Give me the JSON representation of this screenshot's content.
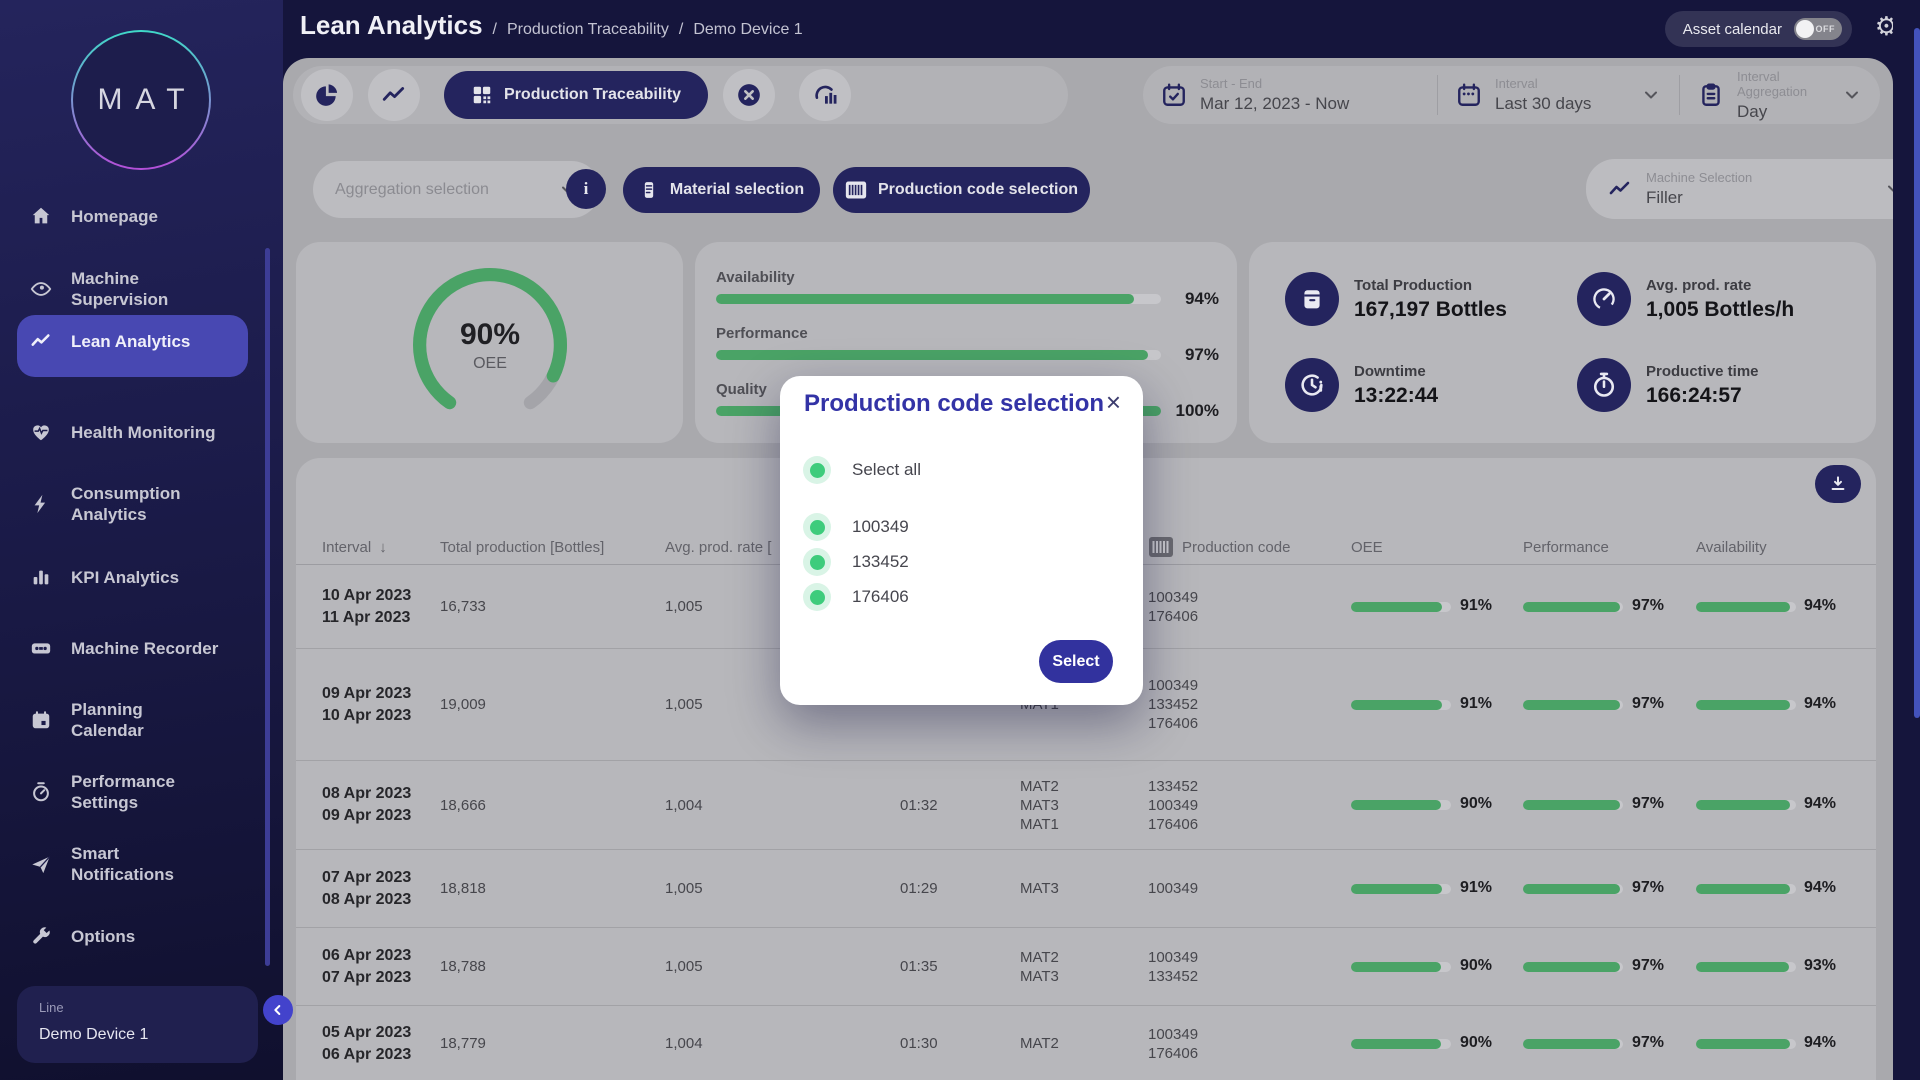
{
  "brand": {
    "logo_text": "MAT"
  },
  "header": {
    "title": "Lean Analytics",
    "breadcrumb": [
      "Production Traceability",
      "Demo Device 1"
    ],
    "asset_calendar_label": "Asset calendar",
    "asset_calendar_state": "OFF"
  },
  "sidebar": {
    "items": [
      {
        "icon": "home",
        "lines": [
          "Homepage"
        ],
        "active": false
      },
      {
        "icon": "eye",
        "lines": [
          "Machine",
          "Supervision"
        ],
        "active": false
      },
      {
        "icon": "trend",
        "lines": [
          "Lean Analytics"
        ],
        "active": true
      },
      {
        "icon": "heart",
        "lines": [
          "Health Monitoring"
        ],
        "active": false
      },
      {
        "icon": "bolt",
        "lines": [
          "Consumption",
          "Analytics"
        ],
        "active": false
      },
      {
        "icon": "bars",
        "lines": [
          "KPI Analytics"
        ],
        "active": false
      },
      {
        "icon": "recorder",
        "lines": [
          "Machine Recorder"
        ],
        "active": false
      },
      {
        "icon": "calendar",
        "lines": [
          "Planning",
          "Calendar"
        ],
        "active": false
      },
      {
        "icon": "gauge",
        "lines": [
          "Performance",
          "Settings"
        ],
        "active": false
      },
      {
        "icon": "send",
        "lines": [
          "Smart",
          "Notifications"
        ],
        "active": false
      },
      {
        "icon": "wrench",
        "lines": [
          "Options"
        ],
        "active": false
      }
    ],
    "device_card": {
      "label": "Line",
      "value": "Demo Device 1"
    }
  },
  "toolbar": {
    "active_view": "Production Traceability",
    "date_range": {
      "label": "Start - End",
      "value": "Mar 12, 2023 - Now"
    },
    "interval": {
      "label": "Interval",
      "value": "Last 30 days"
    },
    "interval_aggregation": {
      "label": "Interval Aggregation",
      "value": "Day"
    },
    "aggregation_placeholder": "Aggregation selection",
    "material_button": "Material selection",
    "production_code_button": "Production code selection",
    "machine_selection": {
      "label": "Machine Selection",
      "value": "Filler"
    }
  },
  "overview": {
    "gauge": {
      "value": 90,
      "display": "90%",
      "label": "OEE"
    },
    "bars": [
      {
        "label": "Availability",
        "value": 94
      },
      {
        "label": "Performance",
        "value": 97
      },
      {
        "label": "Quality",
        "value": 100
      }
    ],
    "kpis": [
      {
        "icon": "production",
        "label": "Total Production",
        "value": "167,197 Bottles"
      },
      {
        "icon": "speed",
        "label": "Avg. prod. rate",
        "value": "1,005 Bottles/h"
      },
      {
        "icon": "clockalert",
        "label": "Downtime",
        "value": "13:22:44"
      },
      {
        "icon": "stopwatch",
        "label": "Productive time",
        "value": "166:24:57"
      }
    ]
  },
  "table": {
    "headers": {
      "interval": "Interval",
      "total": "Total production [Bottles]",
      "rate": "Avg. prod. rate [",
      "production_code": "Production code",
      "oee": "OEE",
      "performance": "Performance",
      "availability": "Availability"
    },
    "rows": [
      {
        "dates": [
          "10 Apr 2023",
          "11 Apr 2023"
        ],
        "total": "16,733",
        "rate": "1,005",
        "time": "",
        "materials": [],
        "codes": [
          "100349",
          "176406"
        ],
        "oee": 91,
        "performance": 97,
        "availability": 94
      },
      {
        "dates": [
          "09 Apr 2023",
          "10 Apr 2023"
        ],
        "total": "19,009",
        "rate": "1,005",
        "time": "",
        "materials": [
          "MAT1"
        ],
        "codes": [
          "100349",
          "133452",
          "176406"
        ],
        "oee": 91,
        "performance": 97,
        "availability": 94
      },
      {
        "dates": [
          "08 Apr 2023",
          "09 Apr 2023"
        ],
        "total": "18,666",
        "rate": "1,004",
        "time": "01:32",
        "materials": [
          "MAT2",
          "MAT3",
          "MAT1"
        ],
        "codes": [
          "133452",
          "100349",
          "176406"
        ],
        "oee": 90,
        "performance": 97,
        "availability": 94
      },
      {
        "dates": [
          "07 Apr 2023",
          "08 Apr 2023"
        ],
        "total": "18,818",
        "rate": "1,005",
        "time": "01:29",
        "materials": [
          "MAT3"
        ],
        "codes": [
          "100349"
        ],
        "oee": 91,
        "performance": 97,
        "availability": 94
      },
      {
        "dates": [
          "06 Apr 2023",
          "07 Apr 2023"
        ],
        "total": "18,788",
        "rate": "1,005",
        "time": "01:35",
        "materials": [
          "MAT2",
          "MAT3"
        ],
        "codes": [
          "100349",
          "133452"
        ],
        "oee": 90,
        "performance": 97,
        "availability": 93
      },
      {
        "dates": [
          "05 Apr 2023",
          "06 Apr 2023"
        ],
        "total": "18,779",
        "rate": "1,004",
        "time": "01:30",
        "materials": [
          "MAT2"
        ],
        "codes": [
          "100349",
          "176406"
        ],
        "oee": 90,
        "performance": 97,
        "availability": 94
      }
    ]
  },
  "modal": {
    "title": "Production code selection",
    "select_all": "Select all",
    "options": [
      "100349",
      "133452",
      "176406"
    ],
    "submit": "Select"
  },
  "colors": {
    "accent_navy": "#24245e",
    "green": "#4aa366",
    "modal_blue": "#3333a6",
    "check_green": "#3ecc7c",
    "active_nav": "#4848b2"
  }
}
